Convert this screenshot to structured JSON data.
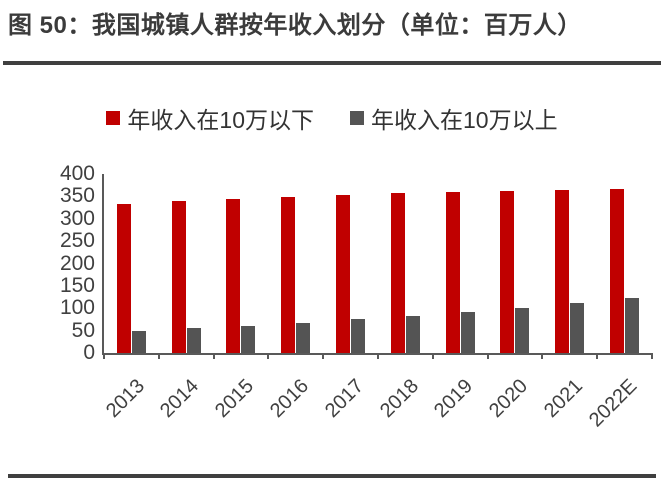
{
  "page": {
    "title": "图 50：我国城镇人群按年收入划分（单位：百万人）"
  },
  "legend": {
    "items": [
      {
        "label": "年收入在10万以下",
        "color": "#c00000"
      },
      {
        "label": "年收入在10万以上",
        "color": "#545454"
      }
    ]
  },
  "chart_data": {
    "type": "bar",
    "title": "图 50：我国城镇人群按年收入划分（单位：百万人）",
    "unit": "百万人",
    "categories": [
      "2013",
      "2014",
      "2015",
      "2016",
      "2017",
      "2018",
      "2019",
      "2020",
      "2021",
      "2022E"
    ],
    "series": [
      {
        "name": "年收入在10万以下",
        "color": "#c00000",
        "values": [
          334,
          339,
          345,
          349,
          353,
          357,
          360,
          362,
          364,
          366
        ]
      },
      {
        "name": "年收入在10万以上",
        "color": "#545454",
        "values": [
          50,
          55,
          61,
          68,
          75,
          83,
          92,
          100,
          112,
          124
        ]
      }
    ],
    "ylim": [
      0,
      400
    ],
    "yticks": [
      400,
      350,
      300,
      250,
      200,
      150,
      100,
      50,
      0
    ],
    "grid": false,
    "legend_position": "top",
    "x_label_rotation": -45
  },
  "colors": {
    "accent_red": "#c00000",
    "bar_gray": "#545454",
    "axis": "#595959",
    "tick_text": "#404040",
    "title_text": "#3b3b3b",
    "rule": "#3f3f3f"
  }
}
